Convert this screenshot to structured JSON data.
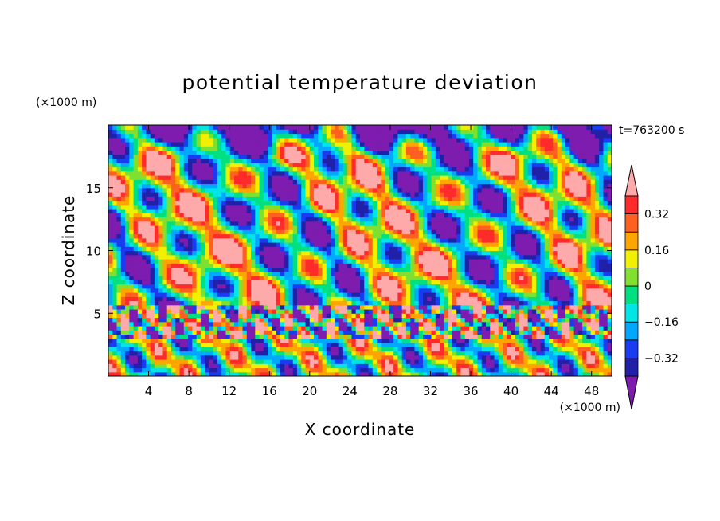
{
  "chart_data": {
    "type": "heatmap",
    "title": "potential temperature deviation",
    "xlabel": "X coordinate",
    "ylabel": "Z coordinate",
    "x_unit_label": "(×1000 m)",
    "y_unit_label": "(×1000 m)",
    "time_label": "t=763200 s",
    "xlim": [
      0,
      50
    ],
    "ylim": [
      0,
      20
    ],
    "x_ticks": [
      4,
      8,
      12,
      16,
      20,
      24,
      28,
      32,
      36,
      40,
      44,
      48
    ],
    "y_ticks": [
      5,
      10,
      15
    ],
    "x_tick_labels": [
      "4",
      "8",
      "12",
      "16",
      "20",
      "24",
      "28",
      "32",
      "36",
      "40",
      "44",
      "48"
    ],
    "y_tick_labels": [
      "5",
      "10",
      "15"
    ],
    "contour_levels": [
      -0.4,
      -0.32,
      -0.24,
      -0.16,
      -0.08,
      0,
      0.08,
      0.16,
      0.24,
      0.32,
      0.4
    ],
    "colorbar_colors": [
      "#7d1cae",
      "#2020a8",
      "#1a3cf0",
      "#00a8ff",
      "#00e5e5",
      "#00e080",
      "#80e030",
      "#f0f000",
      "#ffa500",
      "#ff6020",
      "#ff2a2a",
      "#ffaaaa"
    ],
    "colorbar_labels": [
      {
        "value": 0.32,
        "text": "0.32"
      },
      {
        "value": 0.16,
        "text": "0.16"
      },
      {
        "value": 0,
        "text": "0"
      },
      {
        "value": -0.16,
        "text": "−0.16"
      },
      {
        "value": -0.32,
        "text": "−0.32"
      }
    ]
  }
}
